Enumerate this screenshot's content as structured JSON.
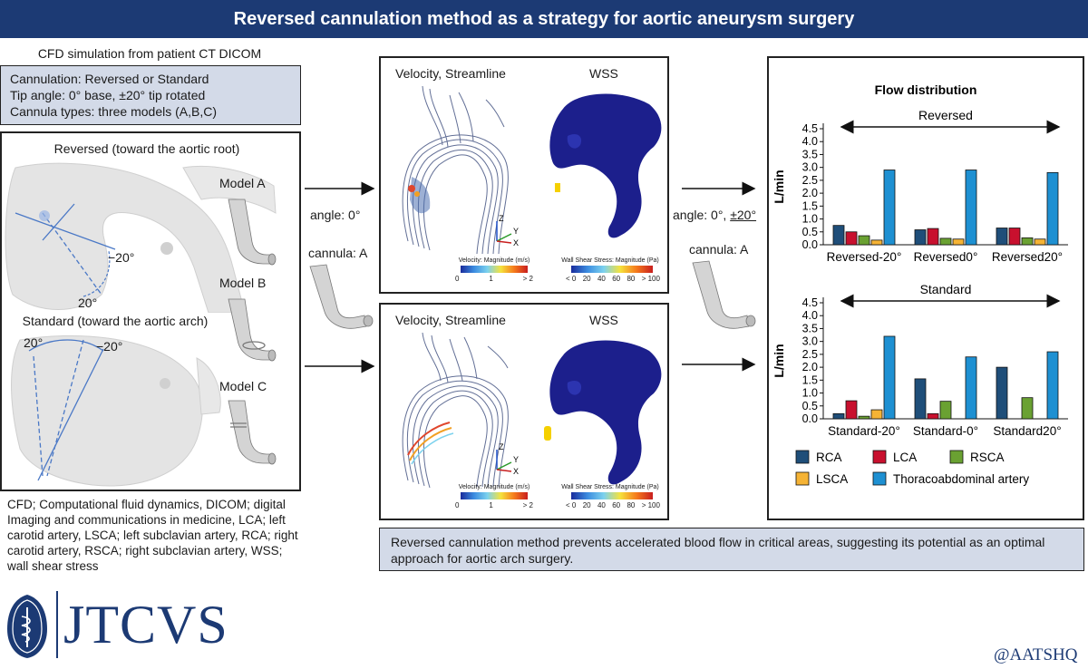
{
  "banner": {
    "title": "Reversed cannulation method as a strategy for aortic aneurysm surgery"
  },
  "left": {
    "subtitle": "CFD simulation from patient CT DICOM",
    "params": [
      "Cannulation: Reversed or Standard",
      "Tip angle: 0° base, ±20° tip rotated",
      "Cannula types: three models (A,B,C)"
    ],
    "reversed_label": "Reversed (toward the aortic root)",
    "standard_label": "Standard (toward the aortic arch)",
    "angle_rev_neg": "−20°",
    "angle_rev_pos": "20°",
    "angle_std_pos": "20°",
    "angle_std_neg": "−20°",
    "models": [
      "Model A",
      "Model B",
      "Model C"
    ],
    "footnote": "CFD; Computational fluid dynamics, DICOM; digital Imaging and communications in medicine, LCA; left carotid artery, LSCA; left subclavian artery, RCA; right carotid artery, RSCA; right subclavian artery, WSS; wall shear stress"
  },
  "middle": {
    "arrow_label_angle": "angle: 0°",
    "arrow_label_cannula": "cannula: A",
    "panel_top": {
      "left_title": "Velocity, Streamline",
      "right_title": "WSS"
    },
    "panel_bottom": {
      "left_title": "Velocity, Streamline",
      "right_title": "WSS"
    },
    "velocity_scale": {
      "title": "Velocity: Magnitude (m/s)",
      "ticks": [
        "0",
        "1",
        "> 2"
      ]
    },
    "wss_scale": {
      "title": "Wall Shear Stress: Magnitude (Pa)",
      "ticks": [
        "< 0",
        "20",
        "40",
        "60",
        "80",
        "> 100"
      ]
    },
    "axes": {
      "z": "Z",
      "y": "Y",
      "x": "X"
    },
    "conclusion": "Reversed cannulation method prevents accelerated blood flow in critical areas, suggesting its potential as an optimal approach for aortic arch surgery."
  },
  "right_arrows": {
    "angle_label_prefix": "angle: 0°, ",
    "angle_label_u": "±20°",
    "cannula_label": "cannula: A"
  },
  "colors": {
    "banner": "#1c3a74",
    "RCA": "#1f4e79",
    "LCA": "#c8102e",
    "RSCA": "#6aa132",
    "LSCA": "#f5b335",
    "Thoracoabdominal artery": "#1e90d2"
  },
  "chart_data": [
    {
      "type": "bar",
      "title": "Flow distribution",
      "subtitle": "Reversed",
      "ylabel": "L/min",
      "ylim": [
        0,
        4.5
      ],
      "yticks": [
        "0.0",
        "0.5",
        "1.0",
        "1.5",
        "2.0",
        "2.5",
        "3.0",
        "3.5",
        "4.0",
        "4.5"
      ],
      "categories": [
        "Reversed-20°",
        "Reversed0°",
        "Reversed20°"
      ],
      "series": [
        {
          "name": "RCA",
          "values": [
            0.75,
            0.58,
            0.65
          ]
        },
        {
          "name": "LCA",
          "values": [
            0.5,
            0.63,
            0.65
          ]
        },
        {
          "name": "RSCA",
          "values": [
            0.35,
            0.25,
            0.27
          ]
        },
        {
          "name": "LSCA",
          "values": [
            0.18,
            0.22,
            0.22
          ]
        },
        {
          "name": "Thoracoabdominal artery",
          "values": [
            2.9,
            2.9,
            2.8
          ]
        }
      ]
    },
    {
      "type": "bar",
      "title": "",
      "subtitle": "Standard",
      "ylabel": "L/min",
      "ylim": [
        0,
        4.5
      ],
      "yticks": [
        "0.0",
        "0.5",
        "1.0",
        "1.5",
        "2.0",
        "2.5",
        "3.0",
        "3.5",
        "4.0",
        "4.5"
      ],
      "categories": [
        "Standard-20°",
        "Standard-0°",
        "Standard20°"
      ],
      "series": [
        {
          "name": "RCA",
          "values": [
            0.2,
            1.55,
            2.0
          ]
        },
        {
          "name": "LCA",
          "values": [
            0.7,
            0.2,
            0.0
          ]
        },
        {
          "name": "RSCA",
          "values": [
            0.1,
            0.68,
            0.82
          ]
        },
        {
          "name": "LSCA",
          "values": [
            0.35,
            0.0,
            0.0
          ]
        },
        {
          "name": "Thoracoabdominal artery",
          "values": [
            3.2,
            2.4,
            2.6
          ]
        }
      ],
      "legend": [
        "RCA",
        "LCA",
        "RSCA",
        "LSCA",
        "Thoracoabdominal artery"
      ]
    }
  ],
  "footer": {
    "journal": "JTCVS",
    "handle": "@AATSHQ"
  }
}
